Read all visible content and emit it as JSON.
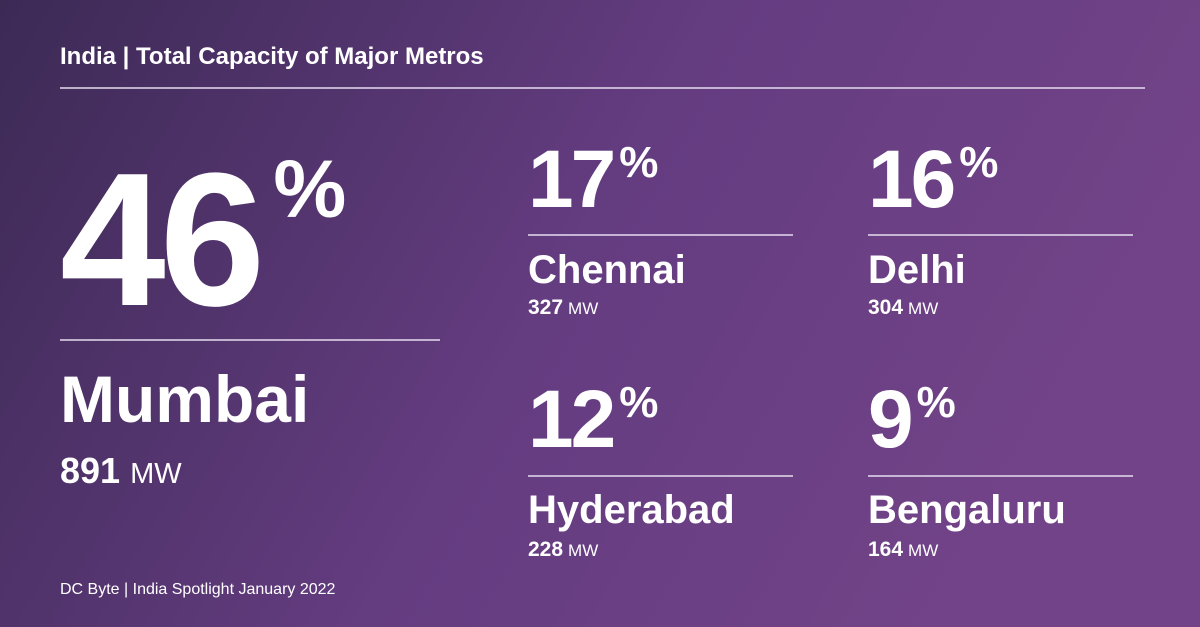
{
  "header": {
    "title": "India | Total Capacity of Major Metros"
  },
  "metros": [
    {
      "share": 46,
      "city": "Mumbai",
      "capacity": 891
    },
    {
      "share": 17,
      "city": "Chennai",
      "capacity": 327
    },
    {
      "share": 16,
      "city": "Delhi",
      "capacity": 304
    },
    {
      "share": 12,
      "city": "Hyderabad",
      "capacity": 228
    },
    {
      "share": 9,
      "city": "Bengaluru",
      "capacity": 164
    }
  ],
  "share_unit": "%",
  "capacity_unit": "MW",
  "footer": "DC Byte | India Spotlight January 2022"
}
